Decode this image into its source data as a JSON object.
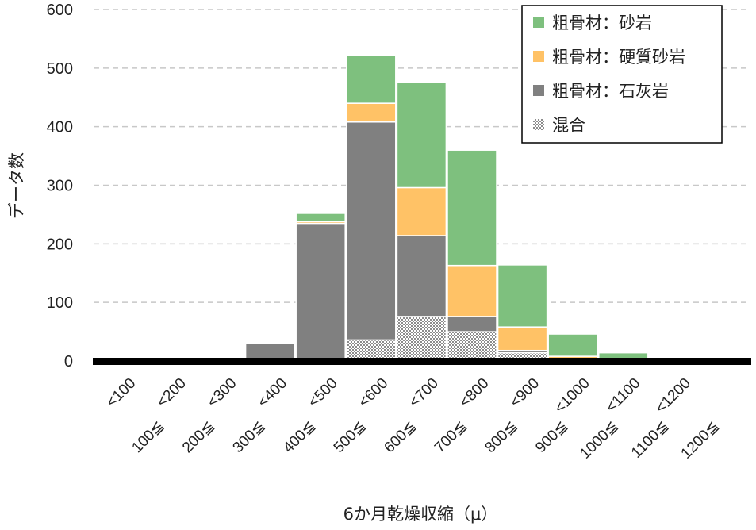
{
  "chart_data": {
    "type": "bar",
    "stacked": true,
    "title": "",
    "xlabel": "6か月乾燥収縮（μ）",
    "ylabel": "データ数",
    "ylim": [
      0,
      600
    ],
    "yticks": [
      0,
      100,
      200,
      300,
      400,
      500,
      600
    ],
    "grid": "horizontal-dashed",
    "legend_position": "top-right",
    "categories": [
      {
        "lower": "",
        "upper": "<100"
      },
      {
        "lower": "100≦",
        "upper": "<200"
      },
      {
        "lower": "200≦",
        "upper": "<300"
      },
      {
        "lower": "300≦",
        "upper": "<400"
      },
      {
        "lower": "400≦",
        "upper": "<500"
      },
      {
        "lower": "500≦",
        "upper": "<600"
      },
      {
        "lower": "600≦",
        "upper": "<700"
      },
      {
        "lower": "700≦",
        "upper": "<800"
      },
      {
        "lower": "800≦",
        "upper": "<900"
      },
      {
        "lower": "900≦",
        "upper": "<1000"
      },
      {
        "lower": "1000≦",
        "upper": "<1100"
      },
      {
        "lower": "1100≦",
        "upper": "<1200"
      },
      {
        "lower": "1200≦",
        "upper": ""
      }
    ],
    "series": [
      {
        "name": "混合",
        "pattern": "dots",
        "color": "#9a9a9a",
        "values": [
          0,
          0,
          0,
          0,
          0,
          36,
          76,
          50,
          14,
          0,
          0,
          0,
          0
        ]
      },
      {
        "name": "粗骨材：石灰岩",
        "color": "#808080",
        "values": [
          0,
          0,
          0,
          30,
          235,
          372,
          138,
          26,
          4,
          0,
          0,
          0,
          0
        ]
      },
      {
        "name": "粗骨材：硬質砂岩",
        "color": "#ffc266",
        "values": [
          0,
          0,
          0,
          0,
          3,
          32,
          82,
          87,
          40,
          8,
          0,
          0,
          0
        ]
      },
      {
        "name": "粗骨材：砂岩",
        "color": "#7ec07e",
        "values": [
          0,
          0,
          0,
          0,
          14,
          82,
          180,
          197,
          106,
          38,
          14,
          6,
          0
        ]
      }
    ],
    "legend_order": [
      "粗骨材：砂岩",
      "粗骨材：硬質砂岩",
      "粗骨材：石灰岩",
      "混合"
    ]
  }
}
